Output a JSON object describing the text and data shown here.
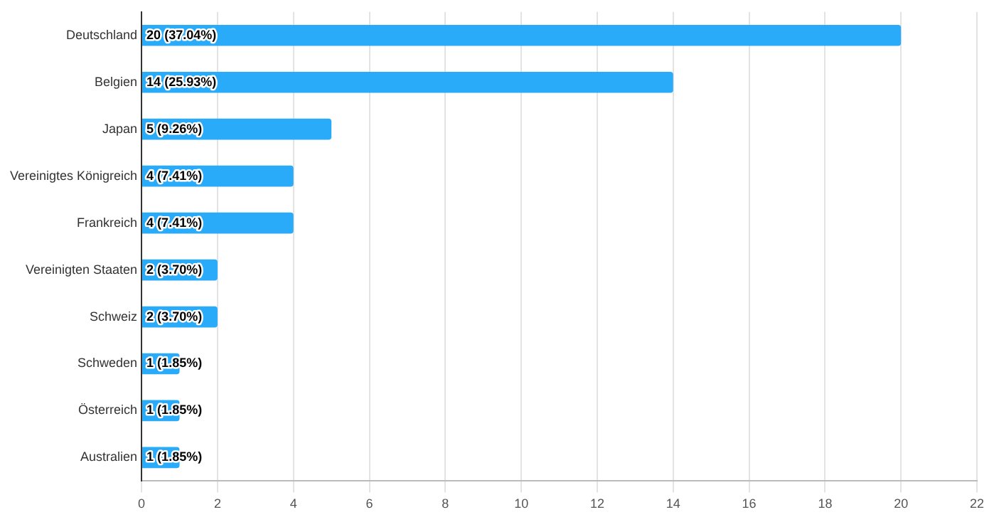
{
  "chart_data": {
    "type": "bar",
    "orientation": "horizontal",
    "categories": [
      "Deutschland",
      "Belgien",
      "Japan",
      "Vereinigtes Königreich",
      "Frankreich",
      "Vereinigten Staaten",
      "Schweiz",
      "Schweden",
      "Österreich",
      "Australien"
    ],
    "values": [
      20,
      14,
      5,
      4,
      4,
      2,
      2,
      1,
      1,
      1
    ],
    "value_labels": [
      "20 (37.04%)",
      "14 (25.93%)",
      "5 (9.26%)",
      "4 (7.41%)",
      "4 (7.41%)",
      "2 (3.70%)",
      "2 (3.70%)",
      "1 (1.85%)",
      "1 (1.85%)",
      "1 (1.85%)"
    ],
    "color": "#2aabf9",
    "xlim": [
      0,
      22
    ],
    "xticks": [
      0,
      2,
      4,
      6,
      8,
      10,
      12,
      14,
      16,
      18,
      20,
      22
    ],
    "grid": "x",
    "legend": false
  }
}
